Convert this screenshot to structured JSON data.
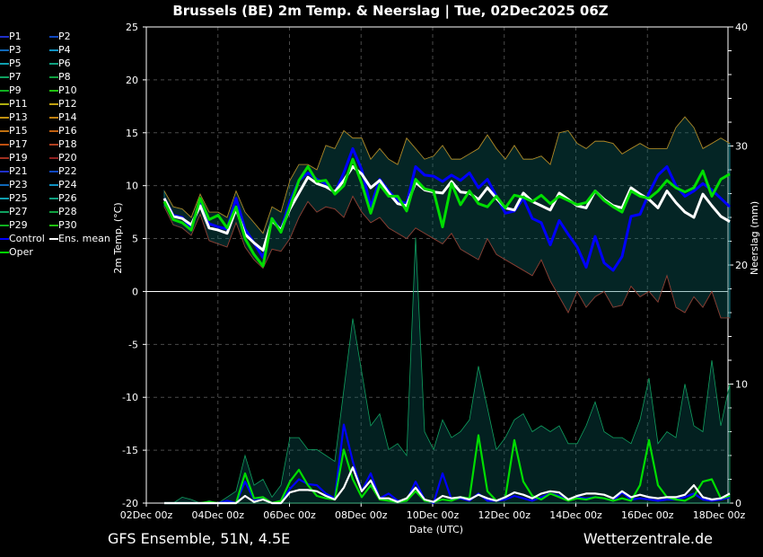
{
  "title": "Brussels  (BE)  2m Temp. & Neerslag | Tue, 02Dec2025 06Z",
  "footer": {
    "left": "GFS Ensemble, 51N, 4.5E",
    "right": "Wetterzentrale.de"
  },
  "legend": [
    {
      "label": "P1",
      "color": "#2030c8"
    },
    {
      "label": "P2",
      "color": "#1048c0"
    },
    {
      "label": "P3",
      "color": "#1068b8"
    },
    {
      "label": "P4",
      "color": "#1090c0"
    },
    {
      "label": "P5",
      "color": "#10a0b0"
    },
    {
      "label": "P6",
      "color": "#10a080"
    },
    {
      "label": "P7",
      "color": "#10a060"
    },
    {
      "label": "P8",
      "color": "#10a040"
    },
    {
      "label": "P9",
      "color": "#10b020"
    },
    {
      "label": "P10",
      "color": "#20c010"
    },
    {
      "label": "P11",
      "color": "#b0b010"
    },
    {
      "label": "P12",
      "color": "#c0a010"
    },
    {
      "label": "P13",
      "color": "#c09010"
    },
    {
      "label": "P14",
      "color": "#c08010"
    },
    {
      "label": "P15",
      "color": "#c07010"
    },
    {
      "label": "P16",
      "color": "#c06010"
    },
    {
      "label": "P17",
      "color": "#c05010"
    },
    {
      "label": "P18",
      "color": "#b04020"
    },
    {
      "label": "P19",
      "color": "#a03020"
    },
    {
      "label": "P20",
      "color": "#902020"
    },
    {
      "label": "P21",
      "color": "#2030c8"
    },
    {
      "label": "P22",
      "color": "#1048c0"
    },
    {
      "label": "P23",
      "color": "#1068b8"
    },
    {
      "label": "P24",
      "color": "#1090c0"
    },
    {
      "label": "P25",
      "color": "#10a0b0"
    },
    {
      "label": "P26",
      "color": "#10a080"
    },
    {
      "label": "P27",
      "color": "#10a060"
    },
    {
      "label": "P28",
      "color": "#10a040"
    },
    {
      "label": "P29",
      "color": "#10b020"
    },
    {
      "label": "P30",
      "color": "#20c010"
    },
    {
      "label": "Control",
      "color": "#0000ff"
    },
    {
      "label": "Ens. mean",
      "color": "#ffffff"
    },
    {
      "label": "Oper",
      "color": "#00dd00"
    }
  ],
  "chart_data": {
    "type": "line",
    "title": "Brussels  (BE)  2m Temp. & Neerslag | Tue, 02Dec2025 06Z",
    "xlabel": "Date (UTC)",
    "ylabel": "2m Temp. (°C)",
    "y2label": "Neerslag (mm)",
    "ylim": [
      -20,
      25
    ],
    "y2lim": [
      0,
      40
    ],
    "yticks": [
      "25",
      "20",
      "15",
      "10",
      "5",
      "0",
      "-5",
      "-10",
      "-15",
      "-20"
    ],
    "y2ticks": [
      "0",
      "10",
      "20",
      "30",
      "40"
    ],
    "xticks": [
      "02Dec 00z",
      "04Dec 00z",
      "06Dec 00z",
      "08Dec 00z",
      "10Dec 00z",
      "12Dec 00z",
      "14Dec 00z",
      "16Dec 00z",
      "18Dec 00z"
    ],
    "x_start": "02Dec 06z",
    "x_step_hours": 6,
    "grid": true,
    "temperature": {
      "ens_mean": [
        8.8,
        7.1,
        6.9,
        6.3,
        8.1,
        6.0,
        5.8,
        5.5,
        7.8,
        5.4,
        4.6,
        3.9,
        6.7,
        5.8,
        7.8,
        9.3,
        10.8,
        10.2,
        9.9,
        9.4,
        10.5,
        11.8,
        11.1,
        9.8,
        10.5,
        9.3,
        8.3,
        8.1,
        10.3,
        9.6,
        9.4,
        9.3,
        10.4,
        9.4,
        9.3,
        8.7,
        9.8,
        8.8,
        7.9,
        7.7,
        9.3,
        8.5,
        8.1,
        7.7,
        9.3,
        8.7,
        8.1,
        7.9,
        9.5,
        8.7,
        8.1,
        7.9,
        9.8,
        9.2,
        8.7,
        7.9,
        9.5,
        8.4,
        7.5,
        7.0,
        9.2,
        8.1,
        7.1,
        6.6
      ],
      "control": [
        8.8,
        7.2,
        7.0,
        6.0,
        8.4,
        6.4,
        6.1,
        5.9,
        8.8,
        5.9,
        4.6,
        3.2,
        6.9,
        5.8,
        8.5,
        10.5,
        11.2,
        10.6,
        10.2,
        9.3,
        11.2,
        13.5,
        11.5,
        8.0,
        10.6,
        9.5,
        8.6,
        8.3,
        11.8,
        11.0,
        10.9,
        10.4,
        11.0,
        10.5,
        11.2,
        9.8,
        10.6,
        9.0,
        7.4,
        7.6,
        8.8,
        6.9,
        6.5,
        4.4,
        6.7,
        5.4,
        4.2,
        2.3,
        5.2,
        2.7,
        2.0,
        3.3,
        7.1,
        7.3,
        9.3,
        11.0,
        11.8,
        10.0,
        9.0,
        9.5,
        10.2,
        9.6,
        8.8,
        8.0
      ],
      "oper": [
        8.5,
        6.8,
        6.5,
        5.8,
        8.8,
        6.8,
        7.2,
        6.0,
        8.0,
        5.0,
        3.5,
        2.4,
        6.9,
        5.6,
        8.0,
        10.5,
        11.8,
        10.4,
        10.5,
        9.2,
        10.0,
        12.5,
        10.2,
        7.4,
        10.1,
        9.0,
        9.0,
        7.6,
        10.6,
        9.7,
        9.5,
        6.1,
        10.2,
        8.2,
        9.5,
        8.3,
        8.0,
        9.0,
        7.9,
        9.1,
        8.9,
        8.5,
        9.1,
        8.3,
        9.0,
        8.6,
        8.2,
        8.4,
        9.5,
        8.6,
        8.0,
        7.5,
        9.5,
        9.0,
        8.8,
        9.5,
        10.5,
        9.8,
        9.4,
        9.8,
        11.4,
        9.0,
        10.6,
        11.1
      ],
      "member_max": [
        9.5,
        8.0,
        7.8,
        7.0,
        9.2,
        7.5,
        7.5,
        7.0,
        9.5,
        7.5,
        6.5,
        5.5,
        8.0,
        7.5,
        10.5,
        12.0,
        12.0,
        11.5,
        13.8,
        13.5,
        15.2,
        14.5,
        14.5,
        12.5,
        13.5,
        12.5,
        12.0,
        14.5,
        13.5,
        12.5,
        12.8,
        13.8,
        12.5,
        12.5,
        13.0,
        13.5,
        14.8,
        13.5,
        12.5,
        13.8,
        12.5,
        12.5,
        12.8,
        12.0,
        15.0,
        15.2,
        14.0,
        13.5,
        14.2,
        14.2,
        14.0,
        13.0,
        13.5,
        14.0,
        13.5,
        13.5,
        13.5,
        15.5,
        16.5,
        15.5,
        13.5,
        14.0,
        14.5,
        14.0
      ],
      "member_min": [
        8.0,
        6.3,
        6.0,
        5.3,
        7.3,
        4.8,
        4.5,
        4.2,
        6.5,
        4.2,
        3.0,
        2.2,
        4.0,
        3.8,
        5.0,
        7.0,
        8.5,
        7.5,
        8.0,
        7.8,
        7.0,
        9.0,
        7.5,
        6.5,
        7.0,
        6.0,
        5.5,
        5.0,
        6.0,
        5.5,
        5.0,
        4.5,
        5.5,
        4.0,
        3.5,
        3.0,
        5.0,
        3.5,
        3.0,
        2.5,
        2.0,
        1.5,
        3.0,
        1.0,
        -0.5,
        -2.0,
        0.0,
        -1.5,
        -0.5,
        0.0,
        -1.5,
        -1.3,
        0.5,
        -0.5,
        0.0,
        -1.0,
        1.5,
        -1.5,
        -2.0,
        -0.5,
        -1.5,
        0.0,
        -2.5,
        -2.5
      ]
    },
    "precipitation_mm": {
      "ens_mean": [
        0,
        0,
        0,
        0,
        0,
        0,
        0,
        0,
        0,
        0.6,
        0.1,
        0.3,
        0,
        0,
        0.9,
        1.1,
        1.1,
        1.0,
        0.6,
        0.3,
        1.3,
        3.0,
        1.0,
        1.9,
        0.4,
        0.4,
        0.1,
        0.4,
        1.3,
        0.3,
        0.1,
        0.6,
        0.4,
        0.5,
        0.3,
        0.7,
        0.4,
        0.2,
        0.5,
        0.9,
        0.7,
        0.4,
        0.8,
        1.0,
        0.9,
        0.3,
        0.6,
        0.8,
        0.8,
        0.7,
        0.4,
        1.0,
        0.5,
        0.7,
        0.5,
        0.4,
        0.5,
        0.5,
        0.7,
        1.5,
        0.5,
        0.3,
        0.4,
        0.8
      ],
      "control": [
        0,
        0,
        0,
        0,
        0,
        0,
        0,
        0.2,
        0,
        1.8,
        0.3,
        0.5,
        0,
        0,
        1.2,
        2.0,
        1.6,
        1.5,
        0.8,
        0.4,
        6.6,
        3.5,
        1.0,
        2.5,
        0.4,
        0.8,
        0.2,
        0.2,
        1.8,
        0.3,
        0,
        2.5,
        0.3,
        0.4,
        0.2,
        0.8,
        0.2,
        0.2,
        0.3,
        0.6,
        0.4,
        0.2,
        0.5,
        0.8,
        0.6,
        0.2,
        0.5,
        0.4,
        0.5,
        0.4,
        0.2,
        0.9,
        0.3,
        0.4,
        0.3,
        0.2,
        0.3,
        0.3,
        0.5,
        0.8,
        0.3,
        0.2,
        0.3,
        0.5
      ],
      "oper": [
        0,
        0,
        0,
        0,
        0,
        0.1,
        0,
        0,
        0,
        2.5,
        0.4,
        0.5,
        0,
        0.2,
        1.8,
        2.8,
        1.5,
        0.6,
        0.4,
        0.3,
        4.5,
        2.0,
        0.5,
        1.5,
        0.3,
        0.2,
        0.1,
        0.2,
        1.0,
        0.2,
        0.1,
        0.3,
        0.2,
        0.5,
        0.4,
        5.7,
        1.0,
        0.2,
        0.5,
        5.3,
        1.8,
        0.6,
        0.3,
        0.8,
        0.5,
        0.2,
        0.4,
        0.3,
        0.5,
        0.4,
        0.2,
        0.4,
        0.2,
        1.5,
        5.3,
        1.5,
        0.5,
        0.3,
        0.2,
        0.6,
        1.8,
        2.0,
        0.4,
        0.6
      ],
      "member_max": [
        0,
        0,
        0.5,
        0.3,
        0,
        0.2,
        0,
        0.5,
        1.0,
        4.0,
        1.5,
        2.0,
        0.5,
        1.5,
        5.5,
        5.5,
        4.5,
        4.5,
        4.0,
        3.5,
        9.5,
        15.5,
        11.0,
        6.5,
        7.5,
        4.5,
        5.0,
        4.0,
        22.3,
        6.0,
        4.5,
        7.0,
        5.5,
        6.0,
        7.0,
        11.5,
        8.0,
        4.5,
        5.5,
        7.0,
        7.5,
        6.0,
        6.5,
        6.0,
        6.5,
        5.0,
        5.0,
        6.5,
        8.5,
        6.0,
        5.5,
        5.5,
        5.0,
        7.0,
        10.5,
        5.0,
        6.0,
        5.5,
        10.0,
        6.5,
        6.0,
        12.0,
        6.5,
        10.0
      ]
    }
  }
}
